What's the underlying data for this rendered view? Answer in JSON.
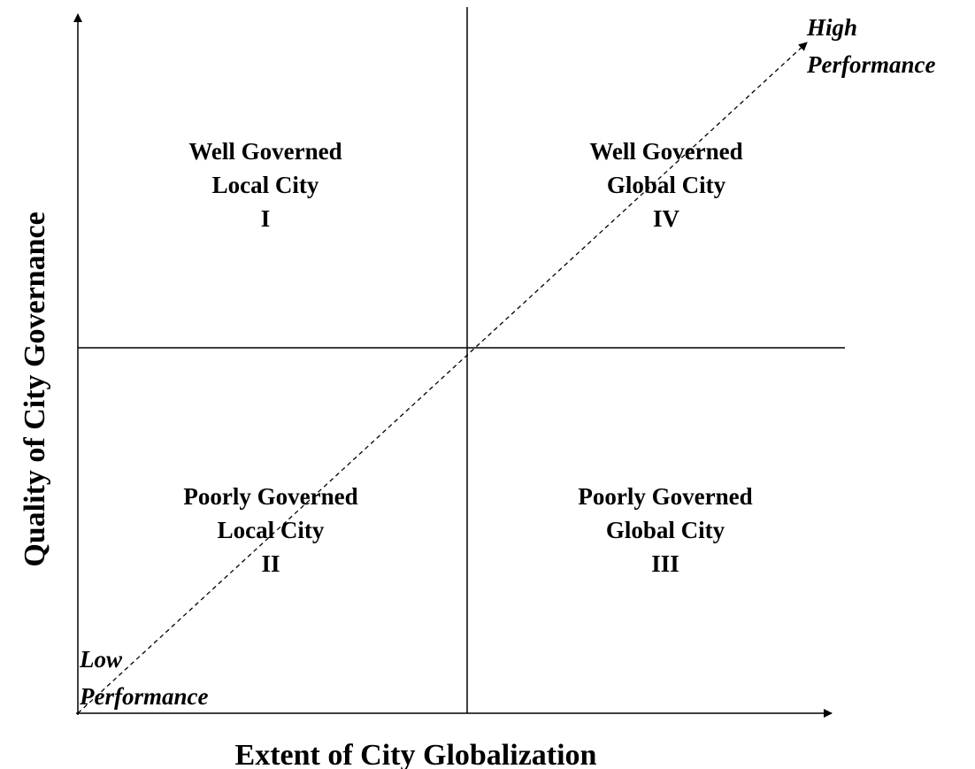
{
  "x_axis_label": "Extent of City Globalization",
  "y_axis_label": "Quality of City Governance",
  "high_label": [
    "High",
    "Performance"
  ],
  "low_label": [
    "Low",
    "Performance"
  ],
  "quadrants": [
    {
      "lines": [
        "Well Governed",
        "Local City",
        "I"
      ]
    },
    {
      "lines": [
        "Well Governed",
        "Global City",
        "IV"
      ]
    },
    {
      "lines": [
        "Poorly Governed",
        "Local City",
        "II"
      ]
    },
    {
      "lines": [
        "Poorly Governed",
        "Global City",
        "III"
      ]
    }
  ]
}
